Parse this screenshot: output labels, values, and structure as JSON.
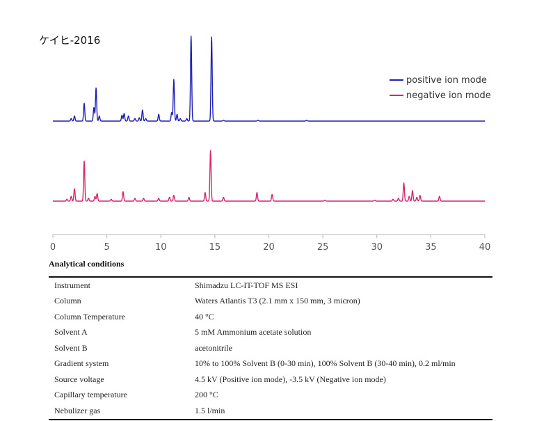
{
  "chart_title": "ケイヒ-2016",
  "chart_data": {
    "type": "line",
    "title": "ケイヒ-2016",
    "xlabel": "",
    "ylabel": "",
    "xlim": [
      0,
      40
    ],
    "x_ticks": [
      0,
      5,
      10,
      15,
      20,
      25,
      30,
      35,
      40
    ],
    "x_tick_labels": [
      "0",
      "5",
      "10",
      "15",
      "20",
      "25",
      "30",
      "35",
      "40"
    ],
    "legend_position": "top-right",
    "series": [
      {
        "name": "positive ion mode",
        "color": "#1f1fb4",
        "peaks": [
          [
            1.7,
            0.03
          ],
          [
            2.0,
            0.06
          ],
          [
            2.9,
            0.21
          ],
          [
            3.8,
            0.16
          ],
          [
            4.0,
            0.39
          ],
          [
            4.3,
            0.06
          ],
          [
            6.4,
            0.07
          ],
          [
            6.6,
            0.09
          ],
          [
            7.0,
            0.06
          ],
          [
            7.6,
            0.03
          ],
          [
            8.0,
            0.04
          ],
          [
            8.3,
            0.13
          ],
          [
            8.6,
            0.03
          ],
          [
            9.8,
            0.08
          ],
          [
            11.0,
            0.1
          ],
          [
            11.2,
            0.49
          ],
          [
            11.5,
            0.08
          ],
          [
            11.8,
            0.03
          ],
          [
            12.4,
            0.03
          ],
          [
            12.8,
            1.0
          ],
          [
            14.7,
            0.99
          ],
          [
            15.8,
            0.01
          ],
          [
            19.0,
            0.01
          ],
          [
            23.5,
            0.01
          ]
        ]
      },
      {
        "name": "negative ion mode",
        "color": "#d6246e",
        "peaks": [
          [
            1.3,
            0.02
          ],
          [
            1.7,
            0.05
          ],
          [
            2.0,
            0.13
          ],
          [
            2.9,
            0.42
          ],
          [
            3.3,
            0.03
          ],
          [
            3.9,
            0.05
          ],
          [
            4.1,
            0.08
          ],
          [
            5.4,
            0.02
          ],
          [
            6.5,
            0.1
          ],
          [
            7.6,
            0.03
          ],
          [
            8.4,
            0.03
          ],
          [
            9.8,
            0.03
          ],
          [
            10.8,
            0.04
          ],
          [
            11.2,
            0.06
          ],
          [
            12.6,
            0.04
          ],
          [
            14.1,
            0.09
          ],
          [
            14.6,
            0.53
          ],
          [
            15.8,
            0.04
          ],
          [
            18.9,
            0.09
          ],
          [
            20.3,
            0.07
          ],
          [
            25.2,
            0.01
          ],
          [
            29.8,
            0.01
          ],
          [
            31.5,
            0.02
          ],
          [
            32.0,
            0.03
          ],
          [
            32.5,
            0.19
          ],
          [
            33.0,
            0.05
          ],
          [
            33.3,
            0.11
          ],
          [
            33.7,
            0.04
          ],
          [
            34.0,
            0.06
          ],
          [
            35.8,
            0.05
          ]
        ]
      }
    ]
  },
  "conditions_heading": "Analytical conditions",
  "conditions": [
    {
      "label": "Instrument",
      "value": "Shimadzu LC-IT-TOF MS ESI"
    },
    {
      "label": "Column",
      "value": "Waters Atlantis T3 (2.1 mm x 150 mm, 3 micron)"
    },
    {
      "label": "Column Temperature",
      "value": "40 °C"
    },
    {
      "label": "Solvent A",
      "value": "5 mM Ammonium acetate solution"
    },
    {
      "label": "Solvent B",
      "value": "acetonitrile"
    },
    {
      "label": "Gradient system",
      "value": "10% to 100% Solvent B (0-30 min), 100% Solvent B (30-40 min), 0.2 ml/min"
    },
    {
      "label": "Source voltage",
      "value": "4.5 kV (Positive ion mode), -3.5 kV (Negative ion mode)"
    },
    {
      "label": "Capillary temperature",
      "value": "200 °C"
    },
    {
      "label": "Nebulizer gas",
      "value": "1.5 l/min"
    }
  ]
}
